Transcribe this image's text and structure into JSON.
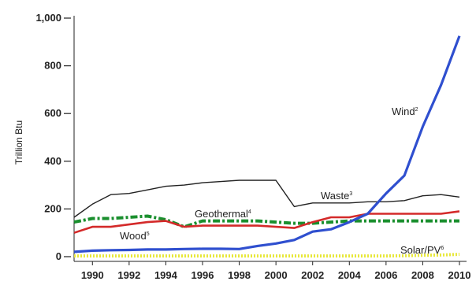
{
  "chart_data": {
    "type": "line",
    "xlabel": "",
    "ylabel": "Trillion Btu",
    "xlim": [
      1989,
      2010
    ],
    "ylim": [
      0,
      1000
    ],
    "x_ticks": [
      "1990",
      "1992",
      "1994",
      "1996",
      "1998",
      "2000",
      "2002",
      "2004",
      "2006",
      "2008",
      "2010"
    ],
    "y_ticks": [
      "0",
      "200",
      "400",
      "600",
      "800",
      "1,000"
    ],
    "legend": "inline labels",
    "grid": false,
    "x": [
      1989,
      1990,
      1991,
      1992,
      1993,
      1994,
      1995,
      1996,
      1997,
      1998,
      1999,
      2000,
      2001,
      2002,
      2003,
      2004,
      2005,
      2006,
      2007,
      2008,
      2009,
      2010
    ],
    "series": [
      {
        "name": "Waste",
        "marker": "3",
        "color": "#222222",
        "style": "solid",
        "values": [
          165,
          220,
          260,
          265,
          280,
          295,
          300,
          310,
          315,
          320,
          320,
          320,
          210,
          225,
          225,
          225,
          230,
          230,
          235,
          255,
          260,
          250
        ]
      },
      {
        "name": "Geothermal",
        "marker": "4",
        "color": "#1a8f2e",
        "style": "dashdot",
        "values": [
          145,
          160,
          160,
          165,
          170,
          155,
          125,
          150,
          150,
          150,
          150,
          145,
          140,
          140,
          145,
          150,
          150,
          150,
          150,
          150,
          150,
          150
        ]
      },
      {
        "name": "Wood",
        "marker": "5",
        "color": "#d42a2a",
        "style": "solid",
        "values": [
          100,
          125,
          125,
          135,
          145,
          150,
          125,
          130,
          130,
          130,
          130,
          125,
          120,
          145,
          165,
          165,
          180,
          180,
          180,
          180,
          180,
          190
        ]
      },
      {
        "name": "Wind",
        "marker": "2",
        "color": "#2f4fcf",
        "style": "solid",
        "values": [
          20,
          25,
          27,
          28,
          30,
          30,
          32,
          33,
          33,
          32,
          45,
          55,
          70,
          105,
          115,
          145,
          180,
          265,
          340,
          545,
          720,
          925
        ]
      },
      {
        "name": "Solar/PV",
        "marker": "6",
        "color": "#e8e83a",
        "style": "dotted",
        "values": [
          3,
          3,
          3,
          3,
          3,
          3,
          3,
          3,
          3,
          3,
          3,
          3,
          3,
          3,
          3,
          3,
          3,
          3,
          4,
          6,
          7,
          10
        ]
      }
    ]
  }
}
